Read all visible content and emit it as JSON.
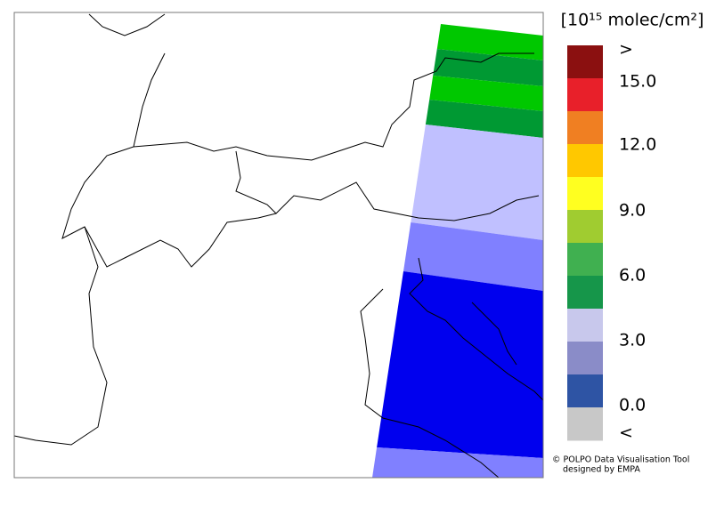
{
  "legend": {
    "title": "[10¹⁵ molec/cm²]",
    "labels": [
      ">",
      "15.0",
      "12.0",
      "9.0",
      "6.0",
      "3.0",
      "0.0",
      "<"
    ],
    "colors": [
      "#8b1010",
      "#e8202a",
      "#f07f22",
      "#ffc800",
      "#ffff20",
      "#a0cc30",
      "#40b050",
      "#16964a",
      "#c8c8ec",
      "#8a8cc8",
      "#2e54a4",
      "#c8c8c8"
    ]
  },
  "credits": {
    "line1": "© POLPO Data Visualisation Tool",
    "line2": "designed by EMPA"
  }
}
